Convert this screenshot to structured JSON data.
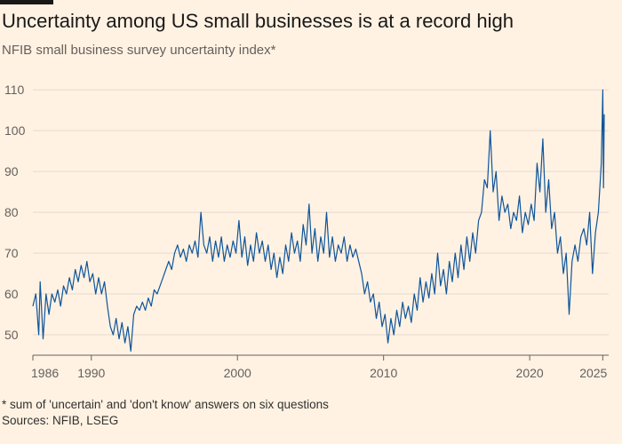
{
  "header": {
    "title": "Uncertainty among US small businesses is at a record high",
    "subtitle": "NFIB small business survey uncertainty index*"
  },
  "footer": {
    "footnote": "* sum of 'uncertain' and 'don't know' answers on six questions",
    "source": "Sources: NFIB, LSEG"
  },
  "colors": {
    "background": "#fff2e3",
    "line": "#0f5499",
    "grid": "#e6d9ce",
    "axis": "#66605c"
  },
  "chart_data": {
    "type": "line",
    "title": "Uncertainty among US small businesses is at a record high",
    "subtitle": "NFIB small business survey uncertainty index*",
    "xlabel": "",
    "ylabel": "",
    "xlim": [
      1986,
      2025.1
    ],
    "ylim": [
      45,
      112
    ],
    "y_ticks": [
      50,
      60,
      70,
      80,
      90,
      100,
      110
    ],
    "x_ticks": [
      {
        "value": 1986,
        "label": "1986"
      },
      {
        "value": 1990,
        "label": "1990"
      },
      {
        "value": 2000,
        "label": "2000"
      },
      {
        "value": 2010,
        "label": "2010"
      },
      {
        "value": 2020,
        "label": "2020"
      },
      {
        "value": 2025,
        "label": "2025"
      }
    ],
    "grid": "horizontal",
    "series": [
      {
        "color": "#0f5499",
        "points": [
          [
            1986.0,
            57
          ],
          [
            1986.2,
            60
          ],
          [
            1986.4,
            50
          ],
          [
            1986.5,
            63
          ],
          [
            1986.7,
            49
          ],
          [
            1986.9,
            60
          ],
          [
            1987.1,
            55
          ],
          [
            1987.3,
            60
          ],
          [
            1987.5,
            58
          ],
          [
            1987.7,
            61
          ],
          [
            1987.9,
            57
          ],
          [
            1988.1,
            62
          ],
          [
            1988.3,
            60
          ],
          [
            1988.5,
            64
          ],
          [
            1988.7,
            61
          ],
          [
            1988.9,
            66
          ],
          [
            1989.1,
            63
          ],
          [
            1989.3,
            67
          ],
          [
            1989.5,
            64
          ],
          [
            1989.7,
            68
          ],
          [
            1989.9,
            63
          ],
          [
            1990.1,
            65
          ],
          [
            1990.3,
            60
          ],
          [
            1990.5,
            64
          ],
          [
            1990.7,
            60
          ],
          [
            1990.9,
            63
          ],
          [
            1991.1,
            57
          ],
          [
            1991.3,
            52
          ],
          [
            1991.5,
            50
          ],
          [
            1991.7,
            54
          ],
          [
            1991.9,
            49
          ],
          [
            1992.1,
            53
          ],
          [
            1992.3,
            48
          ],
          [
            1992.5,
            52
          ],
          [
            1992.7,
            46
          ],
          [
            1992.9,
            55
          ],
          [
            1993.1,
            57
          ],
          [
            1993.3,
            56
          ],
          [
            1993.5,
            58
          ],
          [
            1993.7,
            56
          ],
          [
            1993.9,
            59
          ],
          [
            1994.1,
            57
          ],
          [
            1994.3,
            61
          ],
          [
            1994.5,
            60
          ],
          [
            1994.7,
            62
          ],
          [
            1994.9,
            64
          ],
          [
            1995.1,
            66
          ],
          [
            1995.3,
            68
          ],
          [
            1995.5,
            66
          ],
          [
            1995.7,
            70
          ],
          [
            1995.9,
            72
          ],
          [
            1996.1,
            69
          ],
          [
            1996.3,
            71
          ],
          [
            1996.5,
            68
          ],
          [
            1996.7,
            72
          ],
          [
            1996.9,
            70
          ],
          [
            1997.1,
            73
          ],
          [
            1997.3,
            69
          ],
          [
            1997.5,
            80
          ],
          [
            1997.7,
            72
          ],
          [
            1997.9,
            70
          ],
          [
            1998.1,
            74
          ],
          [
            1998.3,
            68
          ],
          [
            1998.5,
            73
          ],
          [
            1998.7,
            69
          ],
          [
            1998.9,
            74
          ],
          [
            1999.1,
            68
          ],
          [
            1999.3,
            72
          ],
          [
            1999.5,
            69
          ],
          [
            1999.7,
            73
          ],
          [
            1999.9,
            70
          ],
          [
            2000.1,
            78
          ],
          [
            2000.3,
            69
          ],
          [
            2000.5,
            74
          ],
          [
            2000.7,
            67
          ],
          [
            2000.9,
            72
          ],
          [
            2001.1,
            68
          ],
          [
            2001.3,
            75
          ],
          [
            2001.5,
            70
          ],
          [
            2001.7,
            73
          ],
          [
            2001.9,
            68
          ],
          [
            2002.1,
            72
          ],
          [
            2002.3,
            66
          ],
          [
            2002.5,
            70
          ],
          [
            2002.7,
            64
          ],
          [
            2002.9,
            69
          ],
          [
            2003.1,
            65
          ],
          [
            2003.3,
            72
          ],
          [
            2003.5,
            68
          ],
          [
            2003.7,
            75
          ],
          [
            2003.9,
            70
          ],
          [
            2004.1,
            73
          ],
          [
            2004.3,
            68
          ],
          [
            2004.5,
            77
          ],
          [
            2004.7,
            72
          ],
          [
            2004.9,
            82
          ],
          [
            2005.1,
            70
          ],
          [
            2005.3,
            76
          ],
          [
            2005.5,
            68
          ],
          [
            2005.7,
            74
          ],
          [
            2005.9,
            70
          ],
          [
            2006.1,
            80
          ],
          [
            2006.3,
            69
          ],
          [
            2006.5,
            74
          ],
          [
            2006.7,
            68
          ],
          [
            2006.9,
            72
          ],
          [
            2007.1,
            70
          ],
          [
            2007.3,
            74
          ],
          [
            2007.5,
            68
          ],
          [
            2007.7,
            72
          ],
          [
            2007.9,
            69
          ],
          [
            2008.1,
            71
          ],
          [
            2008.3,
            68
          ],
          [
            2008.5,
            65
          ],
          [
            2008.7,
            60
          ],
          [
            2008.9,
            63
          ],
          [
            2009.1,
            58
          ],
          [
            2009.3,
            60
          ],
          [
            2009.5,
            54
          ],
          [
            2009.7,
            58
          ],
          [
            2009.9,
            52
          ],
          [
            2010.1,
            55
          ],
          [
            2010.3,
            48
          ],
          [
            2010.5,
            54
          ],
          [
            2010.7,
            50
          ],
          [
            2010.9,
            56
          ],
          [
            2011.1,
            52
          ],
          [
            2011.3,
            58
          ],
          [
            2011.5,
            54
          ],
          [
            2011.7,
            57
          ],
          [
            2011.9,
            53
          ],
          [
            2012.1,
            60
          ],
          [
            2012.3,
            56
          ],
          [
            2012.5,
            64
          ],
          [
            2012.7,
            58
          ],
          [
            2012.9,
            63
          ],
          [
            2013.1,
            59
          ],
          [
            2013.3,
            65
          ],
          [
            2013.5,
            60
          ],
          [
            2013.7,
            70
          ],
          [
            2013.9,
            62
          ],
          [
            2014.1,
            66
          ],
          [
            2014.3,
            60
          ],
          [
            2014.5,
            68
          ],
          [
            2014.7,
            63
          ],
          [
            2014.9,
            70
          ],
          [
            2015.1,
            64
          ],
          [
            2015.3,
            72
          ],
          [
            2015.5,
            66
          ],
          [
            2015.7,
            74
          ],
          [
            2015.9,
            68
          ],
          [
            2016.1,
            75
          ],
          [
            2016.3,
            70
          ],
          [
            2016.5,
            78
          ],
          [
            2016.7,
            80
          ],
          [
            2016.9,
            88
          ],
          [
            2017.1,
            86
          ],
          [
            2017.3,
            100
          ],
          [
            2017.5,
            85
          ],
          [
            2017.7,
            90
          ],
          [
            2017.9,
            78
          ],
          [
            2018.1,
            84
          ],
          [
            2018.3,
            80
          ],
          [
            2018.5,
            82
          ],
          [
            2018.7,
            76
          ],
          [
            2018.9,
            80
          ],
          [
            2019.1,
            78
          ],
          [
            2019.3,
            84
          ],
          [
            2019.5,
            75
          ],
          [
            2019.7,
            80
          ],
          [
            2019.9,
            77
          ],
          [
            2020.1,
            82
          ],
          [
            2020.3,
            78
          ],
          [
            2020.5,
            92
          ],
          [
            2020.7,
            85
          ],
          [
            2020.9,
            98
          ],
          [
            2021.1,
            80
          ],
          [
            2021.3,
            88
          ],
          [
            2021.5,
            76
          ],
          [
            2021.7,
            80
          ],
          [
            2021.9,
            70
          ],
          [
            2022.1,
            74
          ],
          [
            2022.3,
            65
          ],
          [
            2022.5,
            70
          ],
          [
            2022.7,
            55
          ],
          [
            2022.9,
            68
          ],
          [
            2023.1,
            72
          ],
          [
            2023.3,
            68
          ],
          [
            2023.5,
            74
          ],
          [
            2023.7,
            76
          ],
          [
            2023.9,
            72
          ],
          [
            2024.1,
            80
          ],
          [
            2024.3,
            65
          ],
          [
            2024.5,
            75
          ],
          [
            2024.7,
            80
          ],
          [
            2024.9,
            92
          ],
          [
            2025.0,
            110
          ],
          [
            2025.05,
            86
          ],
          [
            2025.1,
            104
          ]
        ]
      }
    ]
  }
}
